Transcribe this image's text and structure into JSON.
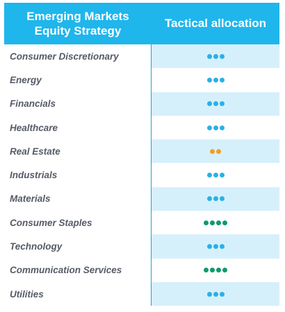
{
  "header": {
    "strategy_line1": "Emerging Markets",
    "strategy_line2": "Equity Strategy",
    "allocation": "Tactical allocation"
  },
  "colors": {
    "header_bg": "#1fb6ec",
    "row_shade": "#d6f0fb",
    "dot_neutral": "#2bb0e6",
    "dot_underweight": "#f0a01e",
    "dot_overweight": "#0e9a6a"
  },
  "rows": [
    {
      "sector": "Consumer Discretionary",
      "dots": 3,
      "dot_color": "#2bb0e6"
    },
    {
      "sector": "Energy",
      "dots": 3,
      "dot_color": "#2bb0e6"
    },
    {
      "sector": "Financials",
      "dots": 3,
      "dot_color": "#2bb0e6"
    },
    {
      "sector": "Healthcare",
      "dots": 3,
      "dot_color": "#2bb0e6"
    },
    {
      "sector": "Real Estate",
      "dots": 2,
      "dot_color": "#f0a01e"
    },
    {
      "sector": "Industrials",
      "dots": 3,
      "dot_color": "#2bb0e6"
    },
    {
      "sector": "Materials",
      "dots": 3,
      "dot_color": "#2bb0e6"
    },
    {
      "sector": "Consumer Staples",
      "dots": 4,
      "dot_color": "#0e9a6a"
    },
    {
      "sector": "Technology",
      "dots": 3,
      "dot_color": "#2bb0e6"
    },
    {
      "sector": "Communication Services",
      "dots": 4,
      "dot_color": "#0e9a6a"
    },
    {
      "sector": "Utilities",
      "dots": 3,
      "dot_color": "#2bb0e6"
    }
  ]
}
